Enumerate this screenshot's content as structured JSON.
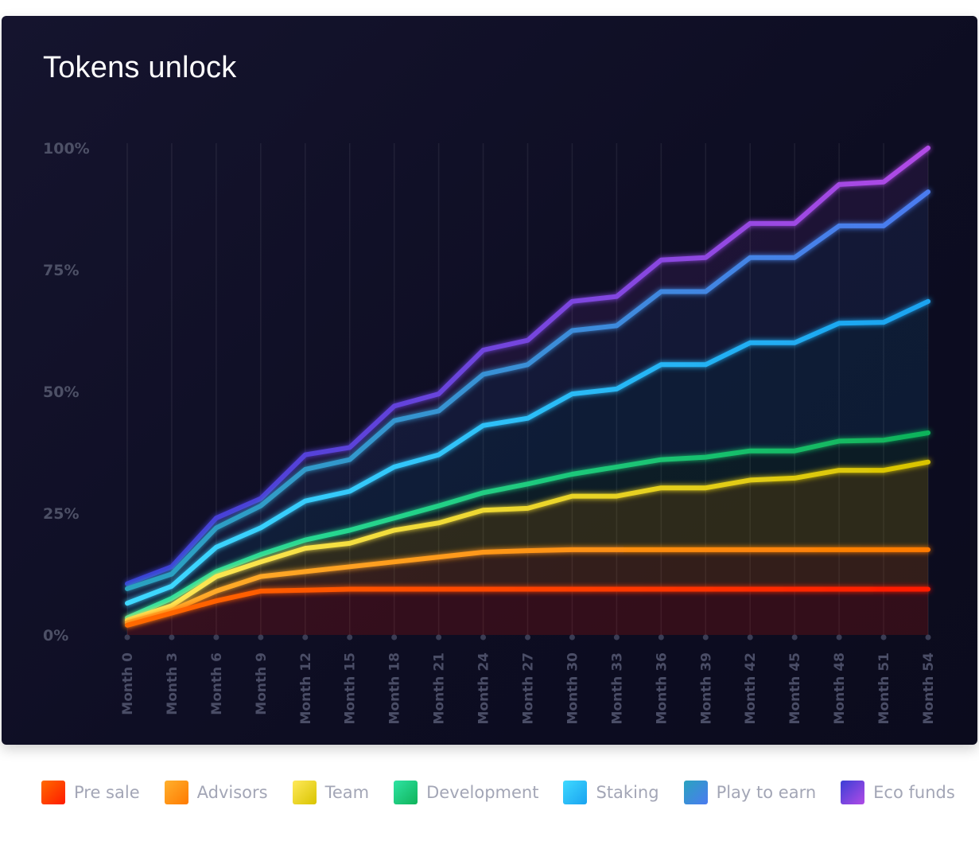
{
  "title": "Tokens unlock",
  "chart_data": {
    "type": "area",
    "stacked": true,
    "title": "Tokens unlock",
    "xlabel": "",
    "ylabel": "",
    "ylim": [
      0,
      100
    ],
    "yticks": [
      "0%",
      "25%",
      "50%",
      "75%",
      "100%"
    ],
    "yticks_values": [
      0,
      25,
      50,
      75,
      100
    ],
    "grid": "vertical",
    "legend_position": "bottom",
    "categories": [
      "Month 0",
      "Month 3",
      "Month 6",
      "Month 9",
      "Month 12",
      "Month 15",
      "Month 18",
      "Month 21",
      "Month 24",
      "Month 27",
      "Month 30",
      "Month 33",
      "Month 36",
      "Month 39",
      "Month 42",
      "Month 45",
      "Month 48",
      "Month 51",
      "Month 54"
    ],
    "series": [
      {
        "name": "Pre sale",
        "colors": [
          "#ff6a00",
          "#ff1a00"
        ],
        "values": [
          2.0,
          4.5,
          7.0,
          9.0,
          9.2,
          9.4,
          9.4,
          9.4,
          9.4,
          9.4,
          9.4,
          9.4,
          9.4,
          9.4,
          9.4,
          9.4,
          9.4,
          9.4,
          9.4
        ]
      },
      {
        "name": "Advisors",
        "colors": [
          "#ffb02e",
          "#ff7a00"
        ],
        "values": [
          2.5,
          5.0,
          9.0,
          12.0,
          13.0,
          14.0,
          15.0,
          16.0,
          17.0,
          17.3,
          17.5,
          17.5,
          17.5,
          17.5,
          17.5,
          17.5,
          17.5,
          17.5,
          17.5
        ]
      },
      {
        "name": "Team",
        "colors": [
          "#ffe95a",
          "#d9c400"
        ],
        "values": [
          3.0,
          6.0,
          12.0,
          15.0,
          17.8,
          18.8,
          21.5,
          23.0,
          25.6,
          26.0,
          28.5,
          28.5,
          30.2,
          30.2,
          31.8,
          32.2,
          33.8,
          33.8,
          35.5
        ]
      },
      {
        "name": "Development",
        "colors": [
          "#2fe3a3",
          "#10b35a"
        ],
        "values": [
          3.5,
          7.5,
          13.0,
          16.5,
          19.5,
          21.5,
          24.0,
          26.5,
          29.2,
          31.0,
          33.0,
          34.5,
          36.0,
          36.5,
          37.8,
          37.8,
          39.8,
          40.0,
          41.5
        ]
      },
      {
        "name": "Staking",
        "colors": [
          "#3fd9ff",
          "#1aa3f0"
        ],
        "values": [
          6.5,
          10.0,
          18.0,
          22.0,
          27.5,
          29.5,
          34.5,
          37.0,
          43.0,
          44.5,
          49.5,
          50.5,
          55.5,
          55.5,
          60.0,
          60.0,
          64.0,
          64.2,
          68.5
        ]
      },
      {
        "name": "Play to earn",
        "colors": [
          "#2aa3bf",
          "#4b7bf0"
        ],
        "values": [
          9.5,
          12.5,
          22.0,
          26.5,
          34.0,
          36.0,
          44.0,
          46.0,
          53.5,
          55.5,
          62.5,
          63.5,
          70.5,
          70.5,
          77.5,
          77.5,
          84.0,
          84.0,
          91.0
        ]
      },
      {
        "name": "Eco funds",
        "colors": [
          "#3b3fd6",
          "#b14be6"
        ],
        "values": [
          10.5,
          14.0,
          24.0,
          28.0,
          37.0,
          38.5,
          47.0,
          49.5,
          58.5,
          60.5,
          68.5,
          69.5,
          77.0,
          77.5,
          84.5,
          84.5,
          92.5,
          93.0,
          100.0
        ]
      }
    ]
  }
}
